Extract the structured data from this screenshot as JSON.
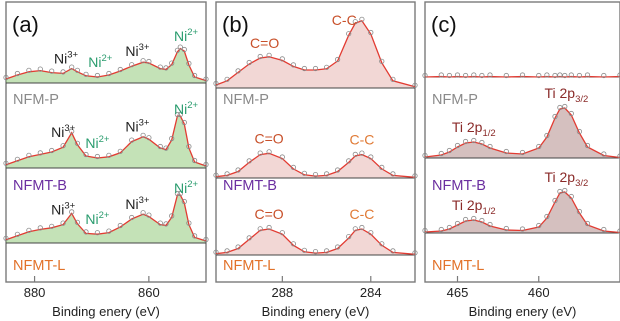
{
  "chart_data": [
    {
      "type": "line",
      "panel_label": "(a)",
      "xlabel": "Binding enery (eV)",
      "xlim": [
        885,
        850
      ],
      "xticks": [
        880,
        860
      ],
      "x": [
        885,
        883,
        881,
        879,
        877,
        875,
        873.5,
        872.5,
        871,
        869,
        867,
        865,
        863,
        861,
        860,
        858,
        857,
        856,
        855,
        854.5,
        853.8,
        853,
        852,
        850
      ],
      "series": [
        {
          "name": "NFM-P",
          "values": [
            0.1,
            0.2,
            0.28,
            0.31,
            0.26,
            0.24,
            0.36,
            0.28,
            0.18,
            0.15,
            0.2,
            0.3,
            0.42,
            0.52,
            0.5,
            0.36,
            0.34,
            0.46,
            0.78,
            0.86,
            0.8,
            0.45,
            0.15,
            0.06
          ]
        },
        {
          "name": "NFMT-B",
          "values": [
            0.08,
            0.18,
            0.28,
            0.34,
            0.4,
            0.52,
            0.88,
            0.58,
            0.3,
            0.25,
            0.28,
            0.38,
            0.66,
            0.78,
            0.72,
            0.5,
            0.46,
            0.7,
            1.3,
            1.3,
            1.1,
            0.5,
            0.15,
            0.05
          ]
        },
        {
          "name": "NFMT-L",
          "values": [
            0.08,
            0.18,
            0.28,
            0.34,
            0.38,
            0.46,
            0.74,
            0.48,
            0.24,
            0.22,
            0.26,
            0.4,
            0.6,
            0.72,
            0.66,
            0.46,
            0.44,
            0.64,
            1.2,
            1.2,
            1.0,
            0.46,
            0.14,
            0.05
          ]
        }
      ],
      "annotations": [
        {
          "series": "NFM-P",
          "parts": [
            "Ni",
            "3+"
          ],
          "color": "#222222",
          "x": 874.5
        },
        {
          "series": "NFM-P",
          "parts": [
            "Ni",
            "2+"
          ],
          "color": "#2a9c6e",
          "x": 868.5
        },
        {
          "series": "NFM-P",
          "parts": [
            "Ni",
            "3+"
          ],
          "color": "#222222",
          "x": 862
        },
        {
          "series": "NFM-P",
          "parts": [
            "Ni",
            "2+"
          ],
          "color": "#2a9c6e",
          "x": 853.5
        },
        {
          "series": "NFMT-B",
          "parts": [
            "Ni",
            "3+"
          ],
          "color": "#222222",
          "x": 875
        },
        {
          "series": "NFMT-B",
          "parts": [
            "Ni",
            "2+"
          ],
          "color": "#2a9c6e",
          "x": 869
        },
        {
          "series": "NFMT-B",
          "parts": [
            "Ni",
            "3+"
          ],
          "color": "#222222",
          "x": 862
        },
        {
          "series": "NFMT-B",
          "parts": [
            "Ni",
            "2+"
          ],
          "color": "#2a9c6e",
          "x": 853.5
        },
        {
          "series": "NFMT-L",
          "parts": [
            "Ni",
            "3+"
          ],
          "color": "#222222",
          "x": 875
        },
        {
          "series": "NFMT-L",
          "parts": [
            "Ni",
            "2+"
          ],
          "color": "#2a9c6e",
          "x": 869
        },
        {
          "series": "NFMT-L",
          "parts": [
            "Ni",
            "3+"
          ],
          "color": "#222222",
          "x": 862
        },
        {
          "series": "NFMT-L",
          "parts": [
            "Ni",
            "2+"
          ],
          "color": "#2a9c6e",
          "x": 853.5
        }
      ]
    },
    {
      "type": "line",
      "panel_label": "(b)",
      "xlabel": "Binding enery (eV)",
      "xlim": [
        291,
        282
      ],
      "xticks": [
        288,
        284
      ],
      "x": [
        291,
        290.5,
        290,
        289.5,
        289,
        288.6,
        288,
        287.5,
        287,
        286.5,
        286,
        285.5,
        285,
        284.7,
        284.4,
        284,
        283.5,
        283,
        282
      ],
      "series": [
        {
          "name": "NFM-P",
          "values": [
            0.05,
            0.12,
            0.26,
            0.4,
            0.5,
            0.52,
            0.46,
            0.36,
            0.3,
            0.3,
            0.32,
            0.45,
            0.88,
            1.08,
            1.12,
            0.9,
            0.42,
            0.12,
            0.02
          ]
        },
        {
          "name": "NFMT-B",
          "values": [
            0.02,
            0.04,
            0.1,
            0.24,
            0.36,
            0.38,
            0.3,
            0.14,
            0.05,
            0.03,
            0.04,
            0.1,
            0.24,
            0.34,
            0.36,
            0.3,
            0.14,
            0.04,
            0.01
          ]
        },
        {
          "name": "NFMT-L",
          "values": [
            0.02,
            0.04,
            0.1,
            0.24,
            0.38,
            0.4,
            0.32,
            0.15,
            0.05,
            0.03,
            0.04,
            0.1,
            0.26,
            0.38,
            0.4,
            0.32,
            0.15,
            0.04,
            0.01
          ]
        }
      ],
      "annotations": [
        {
          "series": "NFM-P",
          "parts": [
            "C=O"
          ],
          "color": "#c8502a",
          "x": 288.8
        },
        {
          "series": "NFM-P",
          "parts": [
            "C-C"
          ],
          "color": "#c8502a",
          "x": 285.2
        },
        {
          "series": "NFMT-B",
          "parts": [
            "C=O"
          ],
          "color": "#c8502a",
          "x": 288.6
        },
        {
          "series": "NFMT-B",
          "parts": [
            "C-C"
          ],
          "color": "#e07a35",
          "x": 284.4
        },
        {
          "series": "NFMT-L",
          "parts": [
            "C=O"
          ],
          "color": "#c8502a",
          "x": 288.6
        },
        {
          "series": "NFMT-L",
          "parts": [
            "C-C"
          ],
          "color": "#e07a35",
          "x": 284.4
        }
      ]
    },
    {
      "type": "line",
      "panel_label": "(c)",
      "xlabel": "Binding enery (eV)",
      "xlim": [
        467,
        455
      ],
      "xticks": [
        465,
        460
      ],
      "x": [
        467,
        466,
        465.5,
        465,
        464.5,
        464,
        463.5,
        463,
        462,
        461,
        460,
        459.5,
        459,
        458.7,
        458.4,
        458,
        457.5,
        457,
        456,
        455
      ],
      "series": [
        {
          "name": "NFM-P",
          "values": [
            0.0,
            0.01,
            0.0,
            0.01,
            0.0,
            0.01,
            0.0,
            0.01,
            0.0,
            0.01,
            0.0,
            0.01,
            0.0,
            0.01,
            0.0,
            0.01,
            0.0,
            0.01,
            0.0,
            0.01
          ]
        },
        {
          "name": "NFMT-B",
          "values": [
            0.02,
            0.06,
            0.12,
            0.22,
            0.3,
            0.32,
            0.28,
            0.2,
            0.1,
            0.08,
            0.2,
            0.42,
            0.8,
            0.98,
            1.0,
            0.86,
            0.5,
            0.22,
            0.05,
            0.01
          ]
        },
        {
          "name": "NFMT-L",
          "values": [
            0.02,
            0.04,
            0.08,
            0.16,
            0.24,
            0.26,
            0.22,
            0.14,
            0.06,
            0.05,
            0.12,
            0.3,
            0.62,
            0.8,
            0.82,
            0.7,
            0.4,
            0.16,
            0.04,
            0.01
          ]
        }
      ],
      "annotations": [
        {
          "series": "NFMT-B",
          "parts": [
            "Ti 2p",
            "1/2"
          ],
          "color": "#8a2a28",
          "x": 464
        },
        {
          "series": "NFMT-B",
          "parts": [
            "Ti 2p",
            "3/2"
          ],
          "color": "#8a2a28",
          "x": 458.3
        },
        {
          "series": "NFMT-L",
          "parts": [
            "Ti 2p",
            "1/2"
          ],
          "color": "#8a2a28",
          "x": 464
        },
        {
          "series": "NFMT-L",
          "parts": [
            "Ti 2p",
            "3/2"
          ],
          "color": "#8a2a28",
          "x": 458.3
        }
      ]
    }
  ],
  "colors": {
    "series_label": {
      "NFM-P": "#8a8a8a",
      "NFMT-B": "#6b2fa0",
      "NFMT-L": "#e2722a"
    },
    "fit_line": "#e23b32",
    "data_marker": "#8a8a8a",
    "fill": [
      "#6fb85a",
      "#e0a0a0",
      "#9c6a68"
    ],
    "frame": "#7a7a7a"
  }
}
